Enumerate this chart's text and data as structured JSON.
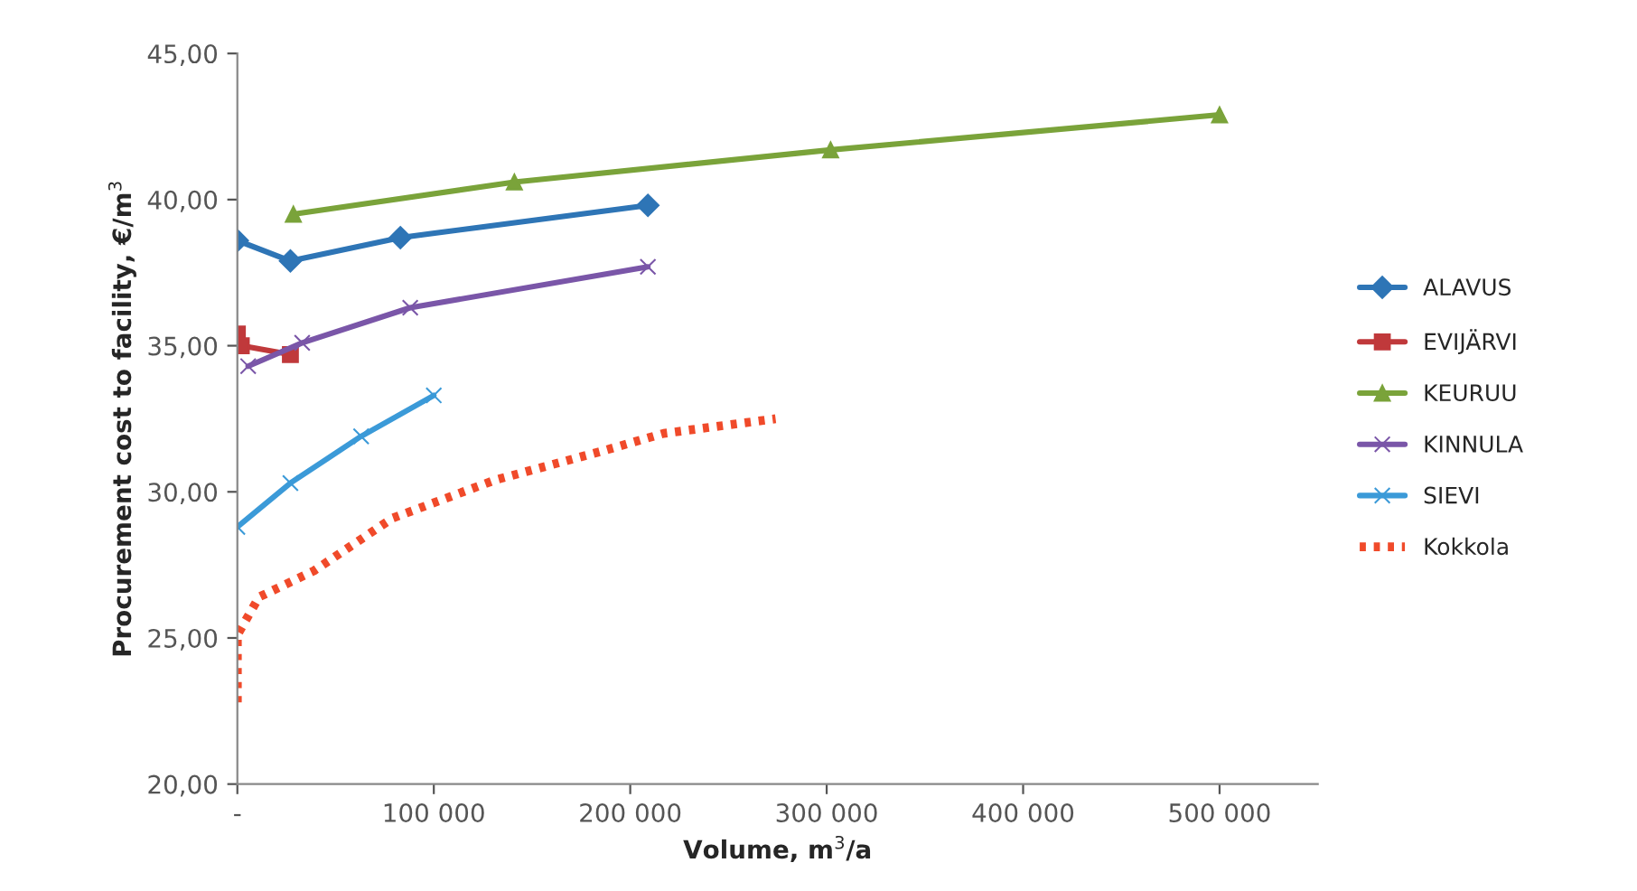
{
  "chart_data": {
    "type": "line",
    "xlabel": "Volume, m$^{3}$/a",
    "ylabel": "Procurement cost to facility, €/m$^{3}$",
    "xlim": [
      0,
      550000
    ],
    "xticks": [
      {
        "value": 0,
        "label": "-"
      },
      {
        "value": 100000,
        "label": "100 000"
      },
      {
        "value": 200000,
        "label": "200 000"
      },
      {
        "value": 300000,
        "label": "300 000"
      },
      {
        "value": 400000,
        "label": "400 000"
      },
      {
        "value": 500000,
        "label": "500 000"
      }
    ],
    "ylim": [
      20,
      45
    ],
    "yticks": [
      {
        "value": 20,
        "label": "20,00"
      },
      {
        "value": 25,
        "label": "25,00"
      },
      {
        "value": 30,
        "label": "30,00"
      },
      {
        "value": 35,
        "label": "35,00"
      },
      {
        "value": 40,
        "label": "40,00"
      },
      {
        "value": 45,
        "label": "45,00"
      }
    ],
    "grid": false,
    "legend": "right",
    "series": [
      {
        "name": "ALAVUS",
        "color": "#2e75b6",
        "marker": "diamond",
        "x": [
          0,
          27000,
          83000,
          209000
        ],
        "values": [
          38.6,
          37.9,
          38.7,
          39.8
        ]
      },
      {
        "name": "EVIJÄRVI",
        "color": "#c0393b",
        "marker": "square",
        "x": [
          0,
          2000,
          27000
        ],
        "values": [
          35.4,
          35.0,
          34.7
        ]
      },
      {
        "name": "KEURUU",
        "color": "#7aa33a",
        "marker": "triangle",
        "x": [
          28500,
          141000,
          302000,
          500000
        ],
        "values": [
          39.5,
          40.6,
          41.7,
          42.9
        ]
      },
      {
        "name": "KINNULA",
        "color": "#7a56a8",
        "marker": "cross",
        "x": [
          5500,
          33000,
          88000,
          209000
        ],
        "values": [
          34.3,
          35.1,
          36.3,
          37.7
        ]
      },
      {
        "name": "SIEVI",
        "color": "#3b9ad8",
        "marker": "cross",
        "x": [
          0,
          27000,
          63000,
          100000
        ],
        "values": [
          28.8,
          30.3,
          31.9,
          33.3
        ]
      },
      {
        "name": "Kokkola",
        "color": "#f04a2a",
        "marker": "none",
        "line_style": "dotted",
        "x": [
          0,
          0,
          11000,
          39000,
          79000,
          131000,
          186000,
          217000,
          274000
        ],
        "values": [
          22.8,
          25.1,
          26.4,
          27.3,
          29.1,
          30.4,
          31.4,
          32.0,
          32.5
        ]
      }
    ]
  }
}
